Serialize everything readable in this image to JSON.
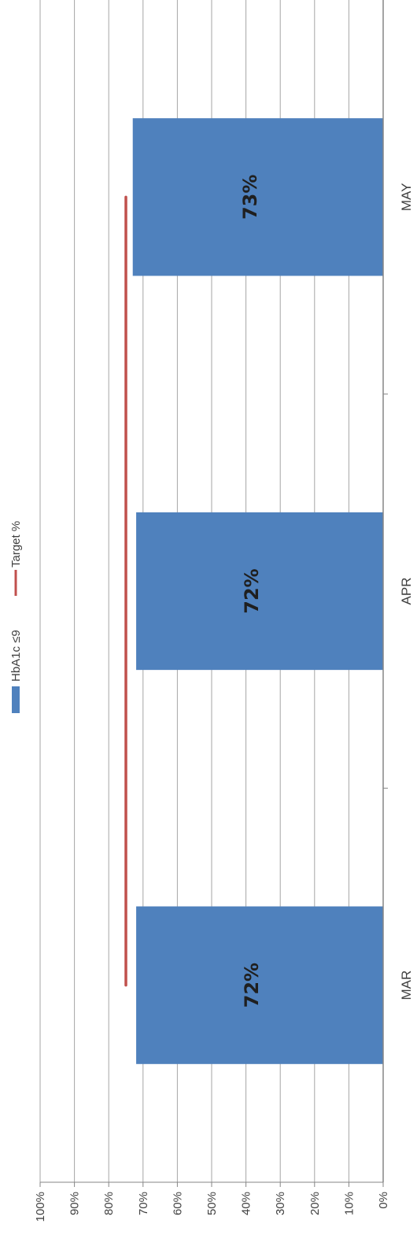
{
  "chart_data": {
    "type": "bar",
    "orientation": "rotated",
    "categories": [
      "MAR",
      "APR",
      "MAY"
    ],
    "series": [
      {
        "name": "HbA1c ≤9",
        "type": "bar",
        "values": [
          72,
          72,
          73
        ],
        "color": "#4f81bd",
        "data_labels": [
          "72%",
          "72%",
          "73%"
        ]
      },
      {
        "name": "Target %",
        "type": "line",
        "values": [
          75,
          75,
          75
        ],
        "color": "#c0504d"
      }
    ],
    "ylim": [
      0,
      100
    ],
    "y_ticks": [
      "0%",
      "10%",
      "20%",
      "30%",
      "40%",
      "50%",
      "60%",
      "70%",
      "80%",
      "90%",
      "100%"
    ],
    "grid": true,
    "legend_position": "top"
  }
}
